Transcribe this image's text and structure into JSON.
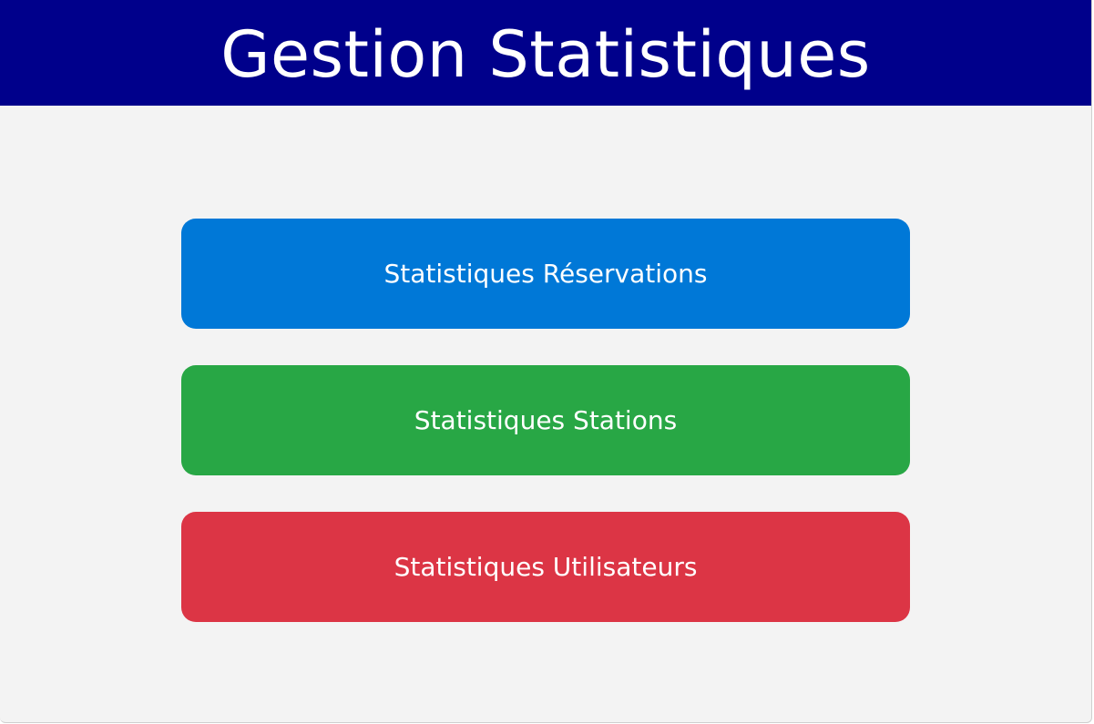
{
  "header": {
    "title": "Gestion Statistiques",
    "background_color": "#00008b"
  },
  "buttons": [
    {
      "label": "Statistiques Réservations",
      "color": "#0078d7"
    },
    {
      "label": "Statistiques Stations",
      "color": "#28a745"
    },
    {
      "label": "Statistiques Utilisateurs",
      "color": "#dc3545"
    }
  ]
}
